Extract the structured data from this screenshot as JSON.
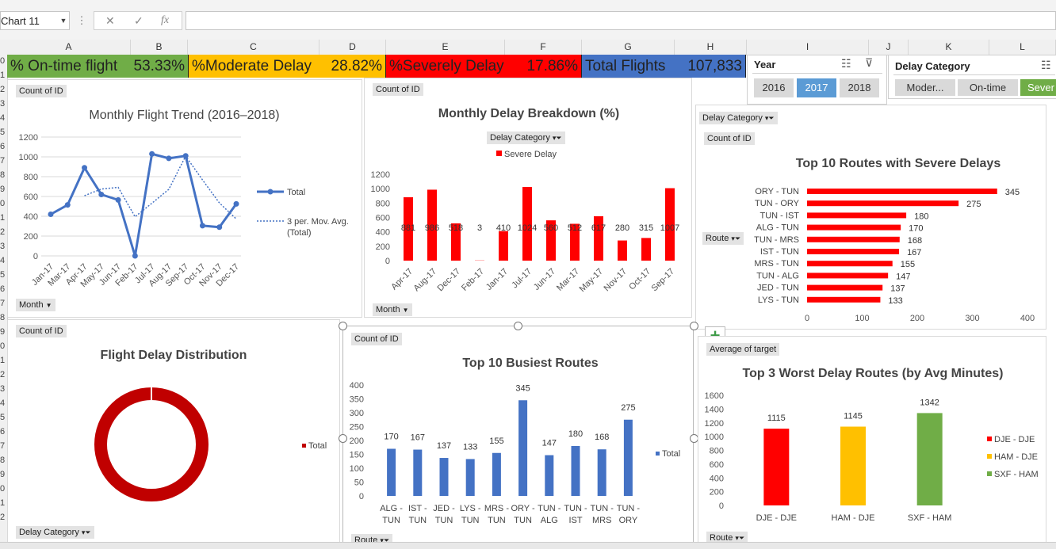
{
  "formula_bar": {
    "name_box": "Chart 11",
    "cancel": "✕",
    "confirm": "✓",
    "fx": "fx"
  },
  "columns": [
    "A",
    "B",
    "C",
    "D",
    "E",
    "F",
    "G",
    "H",
    "I",
    "J",
    "K",
    "L"
  ],
  "rows": [
    "0",
    "1",
    "2",
    "3",
    "4",
    "5",
    "6",
    "7",
    "8",
    "9",
    "0",
    "1",
    "2",
    "3",
    "4",
    "5",
    "6",
    "7",
    "8",
    "9",
    "0",
    "1",
    "2",
    "3",
    "4",
    "5",
    "6",
    "7",
    "8",
    "9",
    "0",
    "1",
    "2"
  ],
  "kpis": [
    {
      "label": "% On-time flight",
      "value": "53.33%",
      "color": "#70ad47"
    },
    {
      "label": "%Moderate Delay",
      "value": "28.82%",
      "color": "#ffc000"
    },
    {
      "label": "%Severely Delay",
      "value": "17.86%",
      "color": "#ff0000"
    },
    {
      "label": "Total Flights",
      "value": "107,833",
      "color": "#4472c4"
    }
  ],
  "slicers": {
    "year": {
      "title": "Year",
      "options": [
        "2016",
        "2017",
        "2018"
      ],
      "selected": "2017"
    },
    "delay_category": {
      "title": "Delay Category",
      "options": [
        "Moder...",
        "On-time",
        "Sever"
      ]
    }
  },
  "charts": {
    "trend": {
      "field_top": "Count of ID",
      "field_bottom": "Month",
      "legend_total": "Total",
      "legend_avg": "3 per. Mov. Avg. (Total)",
      "legend_avg_line1": "3 per. Mov. Avg.",
      "legend_avg_line2": "(Total)"
    },
    "delay_breakdown": {
      "field_top": "Count of ID",
      "field_filter": "Delay Category",
      "field_bottom": "Month"
    },
    "severe_routes": {
      "field_top": "Delay Category",
      "field_count": "Count of ID",
      "field_axis": "Route"
    },
    "distribution": {
      "field_top": "Count of ID",
      "field_bottom": "Delay Category",
      "legend": "Total"
    },
    "busiest": {
      "field_top": "Count of ID",
      "field_bottom": "Route",
      "legend": "Total"
    },
    "worst": {
      "field_top": "Average of target",
      "field_bottom": "Route"
    }
  },
  "chart_data": [
    {
      "type": "line",
      "title": "Monthly Flight Trend (2016–2018)",
      "categories": [
        "Jan-17",
        "Mar-17",
        "Apr-17",
        "May-17",
        "Jun-17",
        "Feb-17",
        "Jul-17",
        "Aug-17",
        "Sep-17",
        "Oct-17",
        "Nov-17",
        "Dec-17"
      ],
      "series": [
        {
          "name": "Total",
          "values": [
            420,
            515,
            890,
            620,
            565,
            0,
            1030,
            985,
            1010,
            305,
            290,
            525
          ]
        },
        {
          "name": "3 per. Mov. Avg. (Total)",
          "values": [
            null,
            null,
            608,
            675,
            692,
            395,
            532,
            672,
            1008,
            767,
            535,
            373
          ]
        }
      ],
      "ylim": [
        0,
        1200
      ],
      "yticks": [
        0,
        200,
        400,
        600,
        800,
        1000,
        1200
      ],
      "legend": "right",
      "grid": true
    },
    {
      "type": "bar",
      "title": "Monthly Delay Breakdown (%)",
      "categories": [
        "Apr-17",
        "Aug-17",
        "Dec-17",
        "Feb-17",
        "Jan-17",
        "Jul-17",
        "Jun-17",
        "Mar-17",
        "May-17",
        "Nov-17",
        "Oct-17",
        "Sep-17"
      ],
      "series": [
        {
          "name": "Severe Delay",
          "values": [
            881,
            986,
            518,
            3,
            410,
            1024,
            560,
            512,
            617,
            280,
            315,
            1007
          ]
        }
      ],
      "data_labels": [
        "881",
        "986",
        "518",
        "3",
        "410",
        "1024",
        "560",
        "512",
        "617",
        "280",
        "315",
        "1007"
      ],
      "ylim": [
        0,
        1200
      ],
      "yticks": [
        0,
        200,
        400,
        600,
        800,
        1000,
        1200
      ],
      "legend": "top",
      "grid": false
    },
    {
      "type": "bar",
      "orientation": "horizontal",
      "title": "Top 10 Routes with Severe Delays",
      "categories": [
        "ORY - TUN",
        "TUN - ORY",
        "TUN - IST",
        "ALG - TUN",
        "TUN - MRS",
        "IST - TUN",
        "MRS - TUN",
        "TUN - ALG",
        "JED - TUN",
        "LYS - TUN"
      ],
      "values": [
        345,
        275,
        180,
        170,
        168,
        167,
        155,
        147,
        137,
        133
      ],
      "xlim": [
        0,
        400
      ],
      "xticks": [
        0,
        100,
        200,
        300,
        400
      ]
    },
    {
      "type": "pie",
      "variant": "doughnut",
      "title": "Flight Delay Distribution",
      "categories": [
        "Total"
      ],
      "values": [
        1
      ]
    },
    {
      "type": "bar",
      "title": "Top 10 Busiest Routes",
      "categories": [
        "ALG - TUN",
        "IST - TUN",
        "JED - TUN",
        "LYS - TUN",
        "MRS - TUN",
        "ORY - TUN",
        "TUN - ALG",
        "TUN - IST",
        "TUN - MRS",
        "TUN - ORY"
      ],
      "series": [
        {
          "name": "Total",
          "values": [
            170,
            167,
            137,
            133,
            155,
            345,
            147,
            180,
            168,
            275
          ]
        }
      ],
      "ylim": [
        0,
        400
      ],
      "yticks": [
        0,
        50,
        100,
        150,
        200,
        250,
        300,
        350,
        400
      ],
      "legend": "right"
    },
    {
      "type": "bar",
      "title": "Top 3 Worst Delay Routes (by Avg Minutes)",
      "categories": [
        "DJE - DJE",
        "HAM - DJE",
        "SXF - HAM"
      ],
      "values": [
        1115,
        1145,
        1342
      ],
      "colors": [
        "#ff0000",
        "#ffc000",
        "#70ad47"
      ],
      "ylim": [
        0,
        1600
      ],
      "yticks": [
        0,
        200,
        400,
        600,
        800,
        1000,
        1200,
        1400,
        1600
      ],
      "legend": "right"
    }
  ]
}
